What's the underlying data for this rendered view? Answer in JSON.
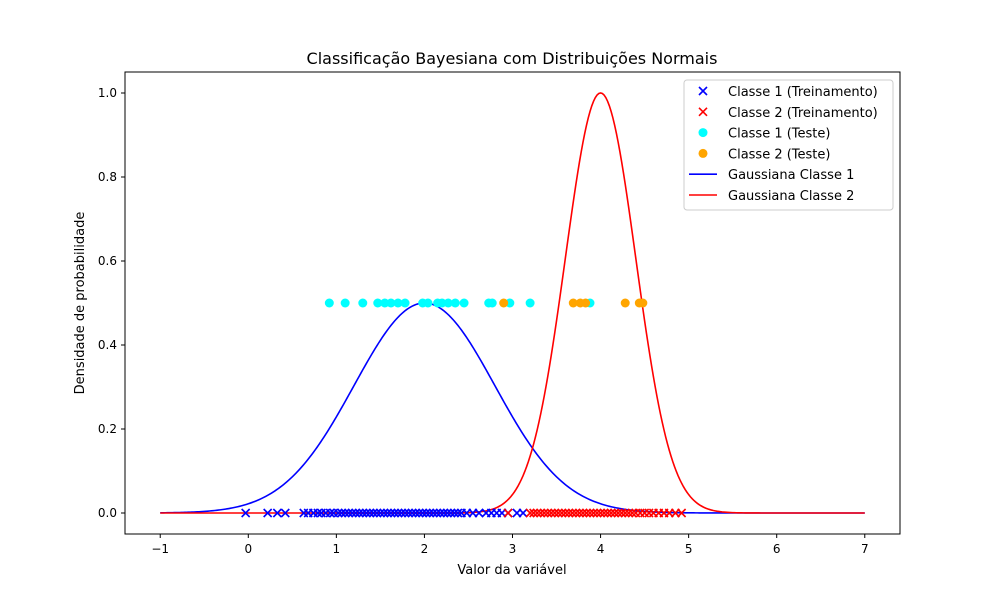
{
  "chart_data": {
    "type": "scatter",
    "title": "Classificação Bayesiana com Distribuições Normais",
    "xlabel": "Valor da variável",
    "ylabel": "Densidade de probabilidade",
    "xlim": [
      -1.4,
      7.4
    ],
    "ylim": [
      -0.05,
      1.05
    ],
    "xticks": [
      -1,
      0,
      1,
      2,
      3,
      4,
      5,
      6,
      7
    ],
    "yticks": [
      0.0,
      0.2,
      0.4,
      0.6,
      0.8,
      1.0
    ],
    "xtick_labels": [
      "−1",
      "0",
      "1",
      "2",
      "3",
      "4",
      "5",
      "6",
      "7"
    ],
    "ytick_labels": [
      "0.0",
      "0.2",
      "0.4",
      "0.6",
      "0.8",
      "1.0"
    ],
    "grid": false,
    "legend_position": "top-right",
    "series": [
      {
        "name": "Classe 1 (Treinamento)",
        "kind": "x-marker",
        "color": "#0000ff",
        "y": 0,
        "x": [
          -0.03,
          0.22,
          0.33,
          0.42,
          0.63,
          0.68,
          0.74,
          0.79,
          0.83,
          0.88,
          0.93,
          0.97,
          1.02,
          1.06,
          1.1,
          1.14,
          1.18,
          1.22,
          1.26,
          1.3,
          1.34,
          1.38,
          1.42,
          1.46,
          1.5,
          1.54,
          1.58,
          1.62,
          1.66,
          1.7,
          1.74,
          1.78,
          1.82,
          1.86,
          1.9,
          1.94,
          1.98,
          2.02,
          2.06,
          2.1,
          2.14,
          2.18,
          2.22,
          2.26,
          2.3,
          2.34,
          2.38,
          2.42,
          2.48,
          2.55,
          2.62,
          2.7,
          2.76,
          2.82,
          2.88,
          2.95,
          3.05,
          3.12
        ]
      },
      {
        "name": "Classe 2 (Treinamento)",
        "kind": "x-marker",
        "color": "#ff0000",
        "y": 0,
        "x": [
          2.95,
          3.2,
          3.24,
          3.28,
          3.32,
          3.36,
          3.4,
          3.44,
          3.48,
          3.52,
          3.56,
          3.6,
          3.64,
          3.68,
          3.72,
          3.76,
          3.8,
          3.84,
          3.88,
          3.92,
          3.96,
          4.0,
          4.04,
          4.08,
          4.12,
          4.16,
          4.2,
          4.24,
          4.28,
          4.32,
          4.36,
          4.4,
          4.45,
          4.5,
          4.55,
          4.6,
          4.66,
          4.72,
          4.78,
          4.85,
          4.92
        ]
      },
      {
        "name": "Classe 1 (Teste)",
        "kind": "dot",
        "color": "#00ffff",
        "y": 0.5,
        "x": [
          0.92,
          1.1,
          1.3,
          1.47,
          1.55,
          1.62,
          1.7,
          1.78,
          1.98,
          2.04,
          2.15,
          2.2,
          2.27,
          2.35,
          2.45,
          2.73,
          2.77,
          2.97,
          3.2,
          3.88
        ]
      },
      {
        "name": "Classe 2 (Teste)",
        "kind": "dot",
        "color": "#ffa500",
        "y": 0.5,
        "x": [
          2.9,
          3.69,
          3.77,
          3.83,
          4.28,
          4.44,
          4.48
        ]
      },
      {
        "name": "Gaussiana Classe 1",
        "kind": "line",
        "color": "#0000ff",
        "mean": 2.0,
        "peak": 0.5,
        "sigma": 0.8,
        "x_range": [
          -1,
          7
        ]
      },
      {
        "name": "Gaussiana Classe 2",
        "kind": "line",
        "color": "#ff0000",
        "mean": 4.0,
        "peak": 1.0,
        "sigma": 0.4,
        "x_range": [
          -1,
          7
        ]
      }
    ]
  }
}
